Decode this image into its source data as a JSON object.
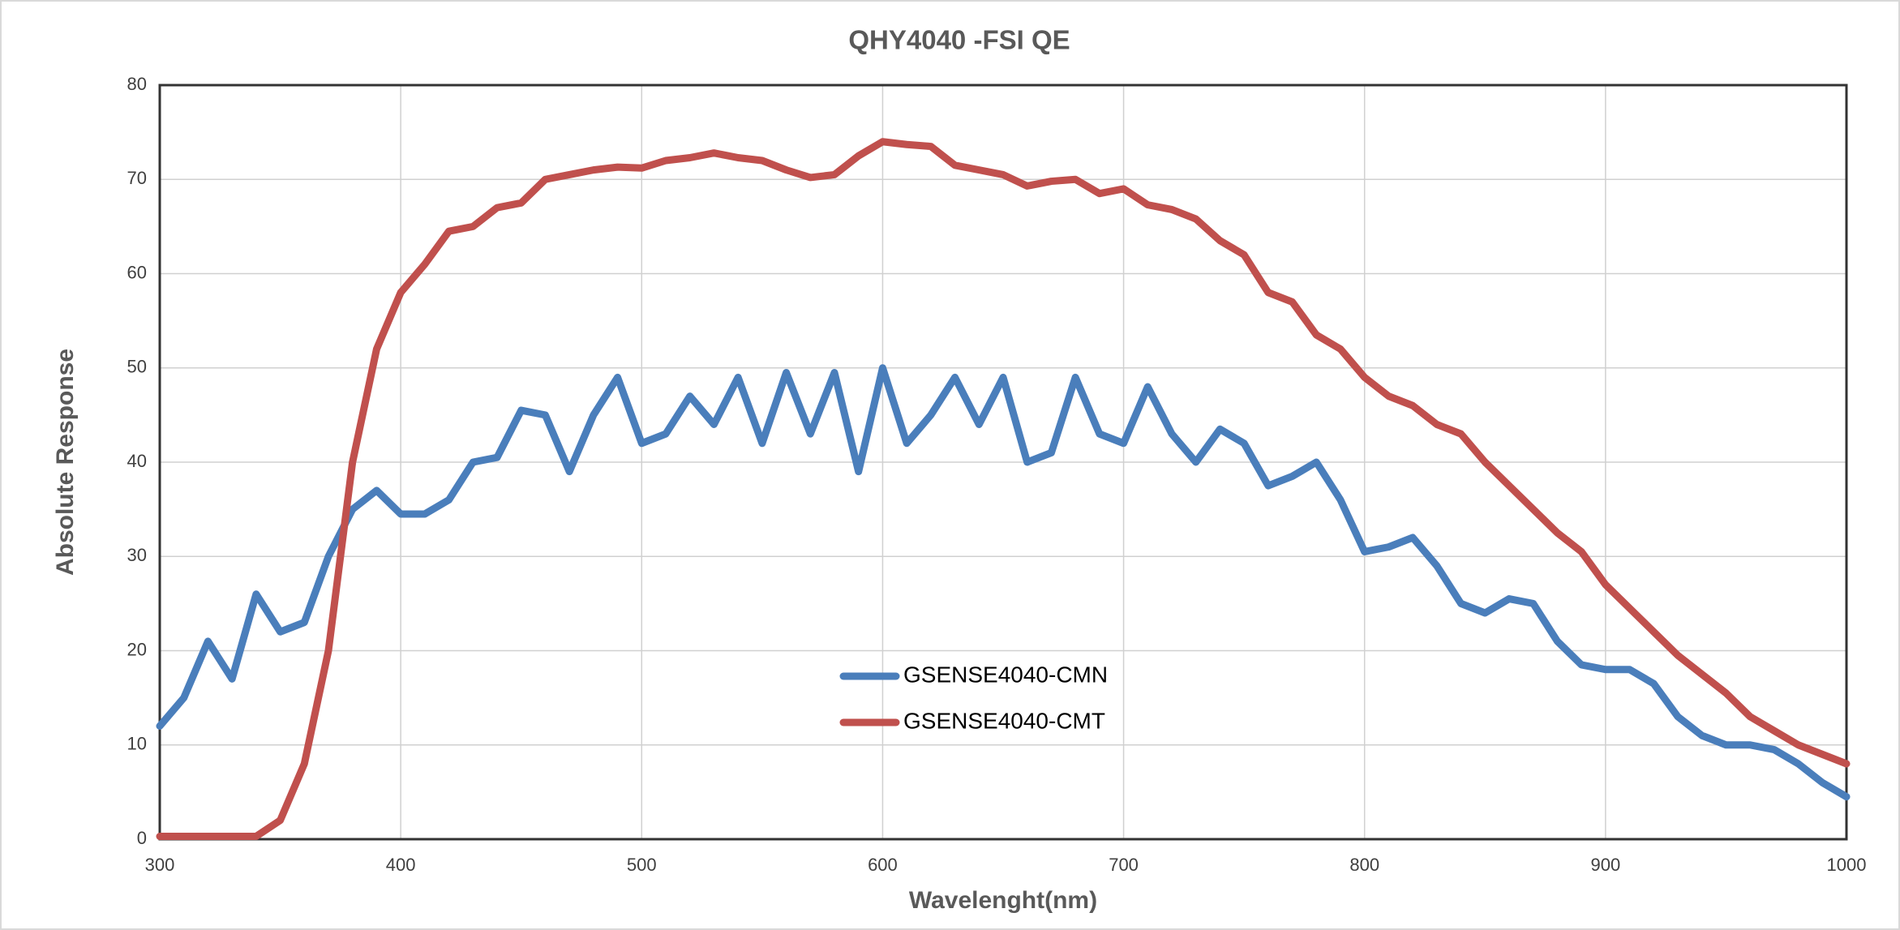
{
  "chart_data": {
    "type": "line",
    "title": "QHY4040 -FSI QE",
    "xlabel": "Wavelenght(nm)",
    "ylabel": "Absolute Response",
    "x": [
      300,
      310,
      320,
      330,
      340,
      350,
      360,
      370,
      380,
      390,
      400,
      410,
      420,
      430,
      440,
      450,
      460,
      470,
      480,
      490,
      500,
      510,
      520,
      530,
      540,
      550,
      560,
      570,
      580,
      590,
      600,
      610,
      620,
      630,
      640,
      650,
      660,
      670,
      680,
      690,
      700,
      710,
      720,
      730,
      740,
      750,
      760,
      770,
      780,
      790,
      800,
      810,
      820,
      830,
      840,
      850,
      860,
      870,
      880,
      890,
      900,
      910,
      920,
      930,
      940,
      950,
      960,
      970,
      980,
      990,
      1000
    ],
    "series": [
      {
        "name": "GSENSE4040-CMN",
        "color": "#4a7ebb",
        "values": [
          12,
          15,
          21,
          17,
          26,
          22,
          23,
          30,
          35,
          37,
          34.5,
          34.5,
          36,
          40,
          40.5,
          45.5,
          45,
          39,
          45,
          49,
          42,
          43,
          47,
          44,
          49,
          42,
          49.5,
          43,
          49.5,
          39,
          50,
          42,
          45,
          49,
          44,
          49,
          40,
          41,
          49,
          43,
          42,
          48,
          43,
          40,
          43.5,
          42,
          37.5,
          38.5,
          40,
          36,
          30.5,
          31,
          32,
          29,
          25,
          24,
          25.5,
          25,
          21,
          18.5,
          18,
          18,
          16.5,
          13,
          11,
          10,
          10,
          9.5,
          8,
          6,
          4.5
        ]
      },
      {
        "name": "GSENSE4040-CMT",
        "color": "#c0504d",
        "values": [
          0.3,
          0.3,
          0.3,
          0.3,
          0.3,
          2,
          8,
          20,
          40,
          52,
          58,
          61,
          64.5,
          65,
          67,
          67.5,
          70,
          70.5,
          71,
          71.3,
          71.2,
          72,
          72.3,
          72.8,
          72.3,
          72,
          71,
          70.2,
          70.5,
          72.5,
          74,
          73.7,
          73.5,
          71.5,
          71,
          70.5,
          69.3,
          69.8,
          70,
          68.5,
          69,
          67.3,
          66.8,
          65.8,
          63.5,
          62,
          58,
          57,
          53.5,
          52,
          49,
          47,
          46,
          44,
          43,
          40,
          37.5,
          35,
          32.5,
          30.5,
          27,
          24.5,
          22,
          19.5,
          17.5,
          15.5,
          13,
          11.5,
          10,
          9,
          8
        ]
      }
    ],
    "xlim": [
      300,
      1000
    ],
    "xticks": [
      300,
      400,
      500,
      600,
      700,
      800,
      900,
      1000
    ],
    "ylim": [
      0,
      80
    ],
    "yticks": [
      0,
      10,
      20,
      30,
      40,
      50,
      60,
      70,
      80
    ],
    "grid": true,
    "legend": "center"
  }
}
